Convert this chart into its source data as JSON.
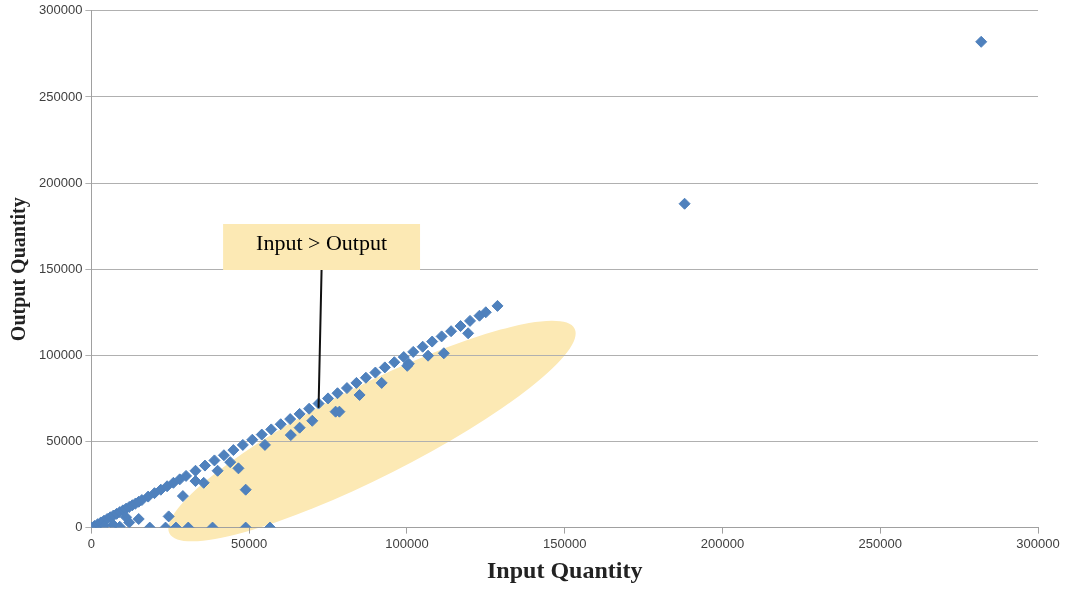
{
  "chart_data": {
    "type": "scatter",
    "xlabel": "Input Quantity",
    "ylabel": "Output Quantity",
    "xlim": [
      0,
      300000
    ],
    "xticks": [
      0,
      50000,
      100000,
      150000,
      200000,
      250000,
      300000
    ],
    "ylim": [
      0,
      300000
    ],
    "yticks": [
      0,
      50000,
      100000,
      150000,
      200000,
      250000,
      300000
    ],
    "grid": "y",
    "legend": false,
    "marker": "diamond",
    "annotations": [
      {
        "text": "Input > Output",
        "x": 72000,
        "y": 70000
      }
    ],
    "series": [
      {
        "color": "#4f81bd",
        "x": [
          0,
          1000,
          2000,
          3000,
          4000,
          5000,
          6000,
          7000,
          8000,
          9000,
          10000,
          11000,
          12000,
          13000,
          14000,
          15000,
          16000,
          18000,
          20000,
          22000,
          24000,
          26000,
          28000,
          30000,
          33000,
          36000,
          39000,
          42000,
          45000,
          48000,
          51000,
          54000,
          57000,
          60000,
          63000,
          66000,
          69000,
          72000,
          75000,
          78000,
          81000,
          84000,
          87000,
          90000,
          93000,
          96000,
          99000,
          102000,
          105000,
          108000,
          111000,
          114000,
          117000,
          120000,
          123000,
          125000,
          128700,
          188000,
          282000,
          4000,
          7000,
          9000,
          12000,
          15000,
          11000,
          18500,
          23500,
          26800,
          30700,
          38400,
          48900,
          56600,
          24500,
          48900,
          46600,
          35600,
          29000,
          63200,
          77400,
          100600,
          111700,
          106700,
          100100,
          78600,
          119400,
          55000,
          66000,
          85000,
          92000,
          70000,
          40000,
          44000,
          33000
        ],
        "values": [
          0,
          1000,
          2000,
          3000,
          4000,
          5000,
          6000,
          7000,
          8000,
          9000,
          10000,
          11000,
          12000,
          13000,
          14000,
          15000,
          16000,
          18000,
          20000,
          22000,
          24000,
          26000,
          28000,
          30000,
          33000,
          36000,
          39000,
          42000,
          45000,
          48000,
          51000,
          54000,
          57000,
          60000,
          63000,
          66000,
          69000,
          72000,
          75000,
          78000,
          81000,
          84000,
          87000,
          90000,
          93000,
          96000,
          99000,
          102000,
          105000,
          108000,
          111000,
          114000,
          117000,
          120000,
          123000,
          125000,
          128700,
          188000,
          282000,
          1000,
          1500,
          500,
          3000,
          5000,
          6000,
          0,
          0,
          0,
          0,
          0,
          0,
          0,
          6500,
          22000,
          34400,
          26000,
          18300,
          53700,
          67300,
          95100,
          101200,
          99800,
          93900,
          67300,
          112800,
          48000,
          58000,
          77000,
          84000,
          62000,
          33000,
          38000,
          27000
        ]
      }
    ]
  }
}
